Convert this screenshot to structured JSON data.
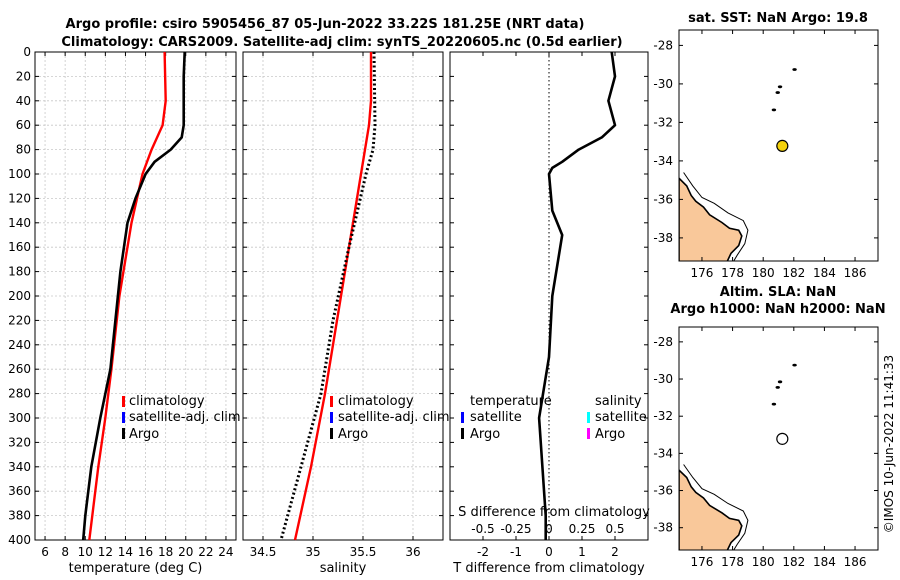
{
  "header": {
    "title_line1": "Argo profile: csiro 5905456_87 05-Jun-2022 33.22S 181.25E (NRT data)",
    "title_line2": "Climatology: CARS2009. Satellite-adj clim: synTS_20220605.nc (0.5d earlier)"
  },
  "legend": {
    "climatology": "climatology",
    "satellite_adj": "satellite-adj. clim",
    "argo": "Argo",
    "temperature": "temperature",
    "salinity": "salinity",
    "satellite": "satellite",
    "argo2": "Argo"
  },
  "map_sst": {
    "title": "sat. SST: NaN Argo: 19.8"
  },
  "map_sla": {
    "title1": "Altim. SLA: NaN",
    "title2": "Argo h1000: NaN h2000: NaN"
  },
  "credit": "©IMOS 10-Jun-2022 11:41:33",
  "colors": {
    "climatology": "#ff0000",
    "satellite": "#0000ff",
    "argo": "#000000",
    "sat_temp": "#00ffff",
    "sat_sal": "#ff00ff",
    "land": "#f9c89a",
    "sst_marker": "#f5d20a",
    "grid": "#c8c8c8"
  },
  "chart_data": [
    {
      "type": "line",
      "name": "temperature",
      "xlabel": "temperature (deg C)",
      "ylabel": "",
      "xlim": [
        5,
        25
      ],
      "ylim": [
        0,
        400
      ],
      "xticks": [
        6,
        8,
        10,
        12,
        14,
        16,
        18,
        20,
        22,
        24
      ],
      "yticks": [
        0,
        20,
        40,
        60,
        80,
        100,
        120,
        140,
        160,
        180,
        200,
        220,
        240,
        260,
        280,
        300,
        320,
        340,
        360,
        380,
        400
      ],
      "series": [
        {
          "name": "climatology",
          "depth": [
            0,
            40,
            60,
            80,
            100,
            140,
            200,
            260,
            300,
            340,
            380,
            400
          ],
          "values": [
            17.9,
            18.0,
            17.7,
            16.6,
            15.7,
            14.6,
            13.4,
            12.6,
            12.0,
            11.3,
            10.7,
            10.4
          ]
        },
        {
          "name": "Argo",
          "depth": [
            0,
            20,
            60,
            70,
            80,
            90,
            100,
            120,
            140,
            180,
            220,
            260,
            300,
            340,
            380,
            400
          ],
          "values": [
            19.9,
            19.8,
            19.8,
            19.6,
            18.5,
            16.9,
            16.0,
            15.0,
            14.2,
            13.5,
            13.0,
            12.5,
            11.5,
            10.6,
            10.0,
            9.8
          ]
        }
      ]
    },
    {
      "type": "line",
      "name": "salinity",
      "xlabel": "salinity",
      "xlim": [
        34.3,
        36.3
      ],
      "ylim": [
        0,
        400
      ],
      "xticks": [
        34.5,
        35,
        35.5,
        36
      ],
      "series": [
        {
          "name": "climatology",
          "depth": [
            0,
            40,
            60,
            100,
            160,
            220,
            280,
            340,
            400
          ],
          "values": [
            35.58,
            35.58,
            35.56,
            35.48,
            35.36,
            35.24,
            35.12,
            34.98,
            34.82
          ]
        },
        {
          "name": "Argo",
          "depth": [
            0,
            60,
            80,
            100,
            160,
            220,
            280,
            340,
            400
          ],
          "values": [
            35.61,
            35.62,
            35.6,
            35.53,
            35.36,
            35.2,
            35.08,
            34.88,
            34.68
          ]
        }
      ]
    },
    {
      "type": "line",
      "name": "difference",
      "xlabel": "T difference from climatology",
      "xlabel_top": "S difference from climatology",
      "xlim": [
        -3,
        3
      ],
      "ylim": [
        0,
        400
      ],
      "xticks": [
        -2,
        -1,
        0,
        1,
        2
      ],
      "xticks_top": [
        "-0.5",
        "-0.25",
        "0",
        "0.25",
        "0.5"
      ],
      "series": [
        {
          "name": "Argo",
          "depth": [
            0,
            20,
            40,
            60,
            70,
            80,
            90,
            95,
            100,
            130,
            150,
            200,
            250,
            300,
            340,
            380,
            400
          ],
          "values": [
            1.9,
            2.0,
            1.8,
            2.0,
            1.6,
            0.9,
            0.4,
            0.1,
            0.0,
            0.1,
            0.4,
            0.1,
            0.0,
            -0.3,
            -0.2,
            -0.1,
            -0.1
          ]
        }
      ]
    },
    {
      "type": "scatter",
      "name": "map_sst",
      "xlim": [
        174.5,
        187.5
      ],
      "ylim": [
        -39.2,
        -27.2
      ],
      "xticks": [
        176,
        178,
        180,
        182,
        184,
        186
      ],
      "yticks": [
        -28,
        -30,
        -32,
        -34,
        -36,
        -38
      ],
      "point": {
        "lon": 181.25,
        "lat": -33.22
      }
    },
    {
      "type": "scatter",
      "name": "map_sla",
      "xlim": [
        174.5,
        187.5
      ],
      "ylim": [
        -39.2,
        -27.2
      ],
      "xticks": [
        176,
        178,
        180,
        182,
        184,
        186
      ],
      "yticks": [
        -28,
        -30,
        -32,
        -34,
        -36,
        -38
      ],
      "point": {
        "lon": 181.25,
        "lat": -33.22
      }
    }
  ]
}
